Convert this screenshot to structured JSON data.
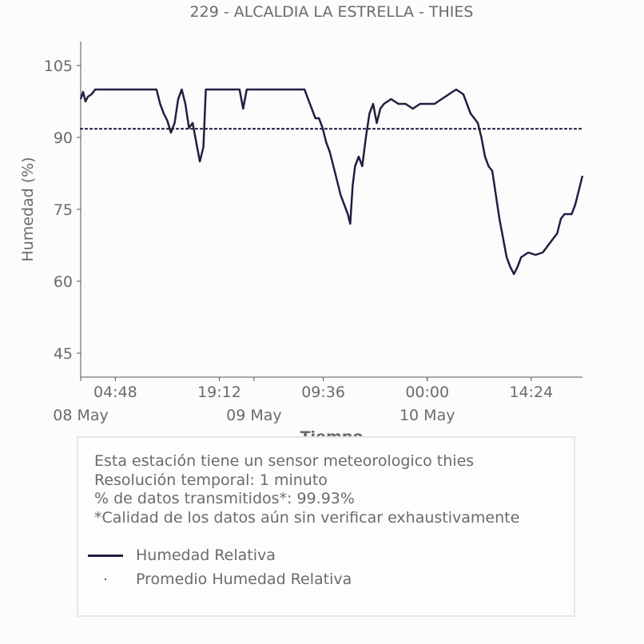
{
  "chart_data": {
    "type": "line",
    "title": "229 - ALCALDIA LA ESTRELLA - THIES",
    "xlabel": "Tiempo",
    "ylabel": "Humedad (%)",
    "ylim": [
      40,
      110
    ],
    "yticks": [
      45,
      60,
      75,
      90,
      105
    ],
    "x_time_range": [
      "08 May 00:00",
      "10 May 21:30"
    ],
    "xtick_times": [
      "04:48",
      "19:12",
      "09:36",
      "00:00",
      "14:24"
    ],
    "xtick_dates": [
      "08 May",
      "09 May",
      "10 May"
    ],
    "mean_line": 91.8,
    "series": [
      {
        "name": "Humedad Relativa",
        "color": "#1f2040",
        "style": "solid",
        "points": [
          [
            "08 May 00:00",
            98
          ],
          [
            "08 May 00:20",
            99.5
          ],
          [
            "08 May 00:40",
            97.5
          ],
          [
            "08 May 01:00",
            98.5
          ],
          [
            "08 May 01:30",
            99
          ],
          [
            "08 May 02:00",
            100
          ],
          [
            "08 May 03:00",
            100
          ],
          [
            "08 May 06:00",
            100
          ],
          [
            "08 May 09:00",
            100
          ],
          [
            "08 May 10:30",
            100
          ],
          [
            "08 May 11:00",
            97
          ],
          [
            "08 May 11:30",
            95
          ],
          [
            "08 May 12:00",
            93.5
          ],
          [
            "08 May 12:30",
            91
          ],
          [
            "08 May 13:00",
            93
          ],
          [
            "08 May 13:30",
            98
          ],
          [
            "08 May 14:00",
            100
          ],
          [
            "08 May 14:30",
            97
          ],
          [
            "08 May 15:00",
            92
          ],
          [
            "08 May 15:30",
            93
          ],
          [
            "08 May 16:00",
            89
          ],
          [
            "08 May 16:30",
            85
          ],
          [
            "08 May 17:00",
            88
          ],
          [
            "08 May 17:20",
            100
          ],
          [
            "08 May 19:00",
            100
          ],
          [
            "08 May 21:00",
            100
          ],
          [
            "08 May 22:00",
            100
          ],
          [
            "08 May 22:30",
            96
          ],
          [
            "08 May 23:00",
            100
          ],
          [
            "09 May 01:00",
            100
          ],
          [
            "09 May 03:00",
            100
          ],
          [
            "09 May 05:00",
            100
          ],
          [
            "09 May 07:00",
            100
          ],
          [
            "09 May 07:30",
            98
          ],
          [
            "09 May 08:00",
            96
          ],
          [
            "09 May 08:30",
            94
          ],
          [
            "09 May 09:00",
            94
          ],
          [
            "09 May 09:30",
            92
          ],
          [
            "09 May 10:00",
            89
          ],
          [
            "09 May 10:30",
            87
          ],
          [
            "09 May 11:00",
            84
          ],
          [
            "09 May 11:30",
            81
          ],
          [
            "09 May 12:00",
            78
          ],
          [
            "09 May 12:30",
            76
          ],
          [
            "09 May 13:00",
            74
          ],
          [
            "09 May 13:20",
            72
          ],
          [
            "09 May 13:40",
            80
          ],
          [
            "09 May 14:00",
            84
          ],
          [
            "09 May 14:30",
            86
          ],
          [
            "09 May 15:00",
            84
          ],
          [
            "09 May 15:30",
            90
          ],
          [
            "09 May 16:00",
            95
          ],
          [
            "09 May 16:30",
            97
          ],
          [
            "09 May 17:00",
            93
          ],
          [
            "09 May 17:30",
            96
          ],
          [
            "09 May 18:00",
            97
          ],
          [
            "09 May 19:00",
            98
          ],
          [
            "09 May 20:00",
            97
          ],
          [
            "09 May 21:00",
            97
          ],
          [
            "09 May 22:00",
            96
          ],
          [
            "09 May 23:00",
            97
          ],
          [
            "10 May 00:00",
            97
          ],
          [
            "10 May 01:00",
            97
          ],
          [
            "10 May 02:00",
            98
          ],
          [
            "10 May 03:00",
            99
          ],
          [
            "10 May 04:00",
            100
          ],
          [
            "10 May 05:00",
            99
          ],
          [
            "10 May 05:30",
            97
          ],
          [
            "10 May 06:00",
            95
          ],
          [
            "10 May 06:30",
            94
          ],
          [
            "10 May 07:00",
            93
          ],
          [
            "10 May 07:30",
            90
          ],
          [
            "10 May 08:00",
            86
          ],
          [
            "10 May 08:30",
            84
          ],
          [
            "10 May 09:00",
            83
          ],
          [
            "10 May 09:30",
            78
          ],
          [
            "10 May 10:00",
            73
          ],
          [
            "10 May 10:30",
            69
          ],
          [
            "10 May 11:00",
            65
          ],
          [
            "10 May 11:30",
            63
          ],
          [
            "10 May 12:00",
            61.5
          ],
          [
            "10 May 12:30",
            63
          ],
          [
            "10 May 13:00",
            65
          ],
          [
            "10 May 14:00",
            66
          ],
          [
            "10 May 15:00",
            65.5
          ],
          [
            "10 May 16:00",
            66
          ],
          [
            "10 May 17:00",
            68
          ],
          [
            "10 May 18:00",
            70
          ],
          [
            "10 May 18:30",
            73
          ],
          [
            "10 May 19:00",
            74
          ],
          [
            "10 May 20:00",
            74
          ],
          [
            "10 May 20:30",
            76
          ],
          [
            "10 May 21:00",
            79
          ],
          [
            "10 May 21:30",
            82
          ]
        ]
      },
      {
        "name": "Promedio Humedad Relativa",
        "color": "#1f2040",
        "style": "dotted"
      }
    ]
  },
  "info": {
    "lines": [
      "Esta estación tiene un sensor meteorologico thies",
      "Resolución temporal: 1 minuto",
      "% de datos transmitidos*: 99.93%",
      "*Calidad de los datos aún sin verificar exhaustivamente"
    ]
  },
  "legend": {
    "items": [
      "Humedad Relativa",
      "Promedio Humedad Relativa"
    ]
  }
}
